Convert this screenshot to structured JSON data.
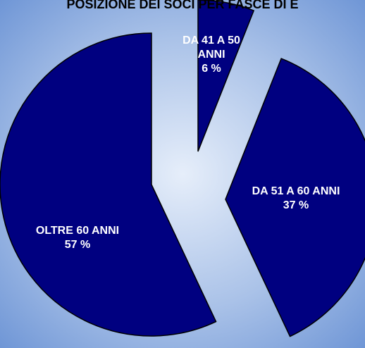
{
  "chart_data": {
    "type": "pie",
    "title": "POSIZIONE DEI SOCI PER FASCE DI E",
    "categories": [
      "DA 41 A 50 ANNI",
      "DA 51 A 60 ANNI",
      "OLTRE 60 ANNI"
    ],
    "values": [
      6,
      37,
      57
    ],
    "value_labels": [
      "6 %",
      "37 %",
      "57 %"
    ],
    "color": "#000080"
  }
}
